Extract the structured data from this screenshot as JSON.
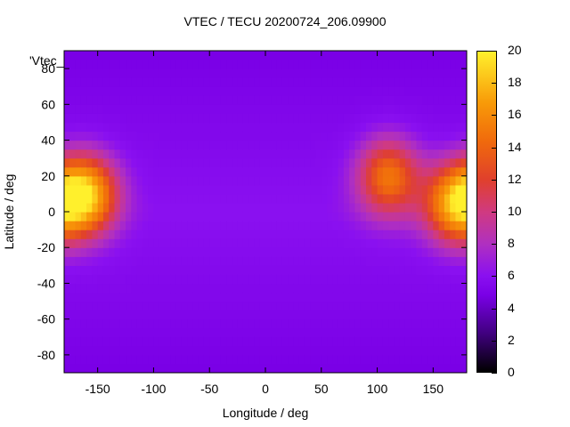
{
  "chart_data": {
    "type": "heatmap",
    "title": "VTEC / TECU 20200724_206.09900",
    "xlabel": "Longitude / deg",
    "ylabel": "Latitude / deg",
    "legend_label": "'Vtec_",
    "xlim": [
      -180,
      180
    ],
    "ylim": [
      -90,
      90
    ],
    "x_ticks": [
      -150,
      -100,
      -50,
      0,
      50,
      100,
      150
    ],
    "y_ticks": [
      -80,
      -60,
      -40,
      -20,
      0,
      20,
      40,
      60,
      80
    ],
    "colorbar": {
      "range": [
        0,
        20
      ],
      "ticks": [
        0,
        2,
        4,
        6,
        8,
        10,
        12,
        14,
        16,
        18,
        20
      ]
    },
    "background_level": 6,
    "features": [
      {
        "lon": -160,
        "lat": 10,
        "peak": 18
      },
      {
        "lon": 170,
        "lat": 5,
        "peak": 17
      },
      {
        "lon": 110,
        "lat": 20,
        "peak": 15
      }
    ]
  }
}
